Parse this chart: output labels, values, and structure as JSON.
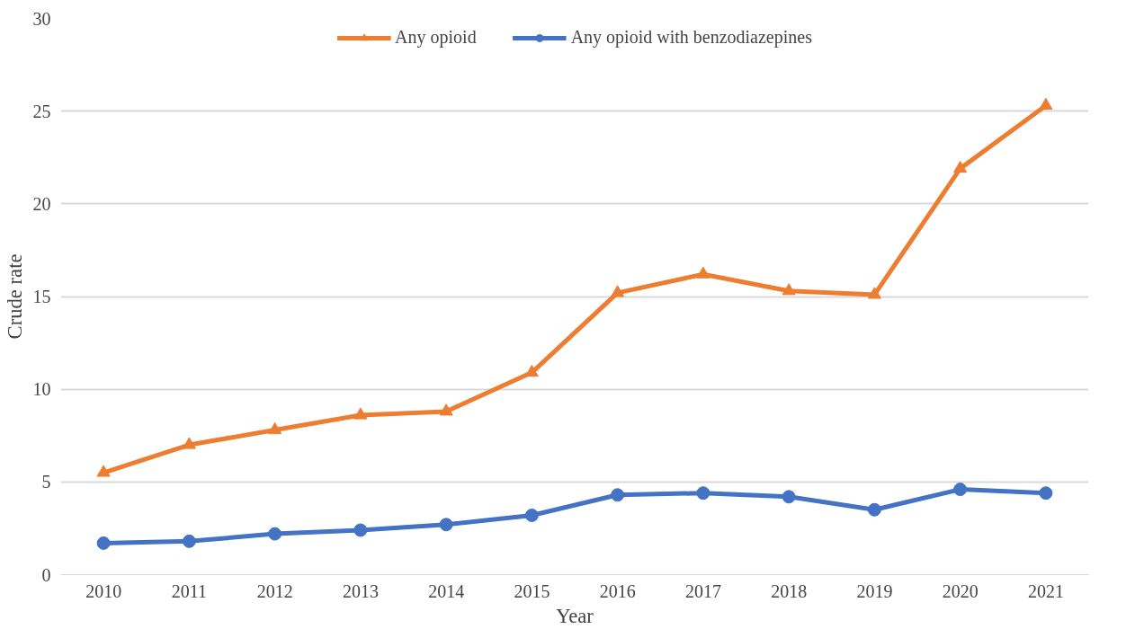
{
  "chart_data": {
    "type": "line",
    "xlabel": "Year",
    "ylabel": "Crude rate",
    "categories": [
      "2010",
      "2011",
      "2012",
      "2013",
      "2014",
      "2015",
      "2016",
      "2017",
      "2018",
      "2019",
      "2020",
      "2021"
    ],
    "series": [
      {
        "name": "Any opioid",
        "color": "#ed7d31",
        "marker": "triangle",
        "values": [
          5.5,
          7.0,
          7.8,
          8.6,
          8.8,
          10.9,
          15.2,
          16.2,
          15.3,
          15.1,
          21.9,
          25.3
        ]
      },
      {
        "name": "Any opioid with benzodiazepines",
        "color": "#4472c4",
        "marker": "circle",
        "values": [
          1.7,
          1.8,
          2.2,
          2.4,
          2.7,
          3.2,
          4.3,
          4.4,
          4.2,
          3.5,
          4.6,
          4.4
        ]
      }
    ],
    "ylim": [
      0,
      30
    ],
    "yticks": [
      0,
      5,
      10,
      15,
      20,
      25,
      30
    ],
    "grid": "y",
    "legend": "top"
  }
}
